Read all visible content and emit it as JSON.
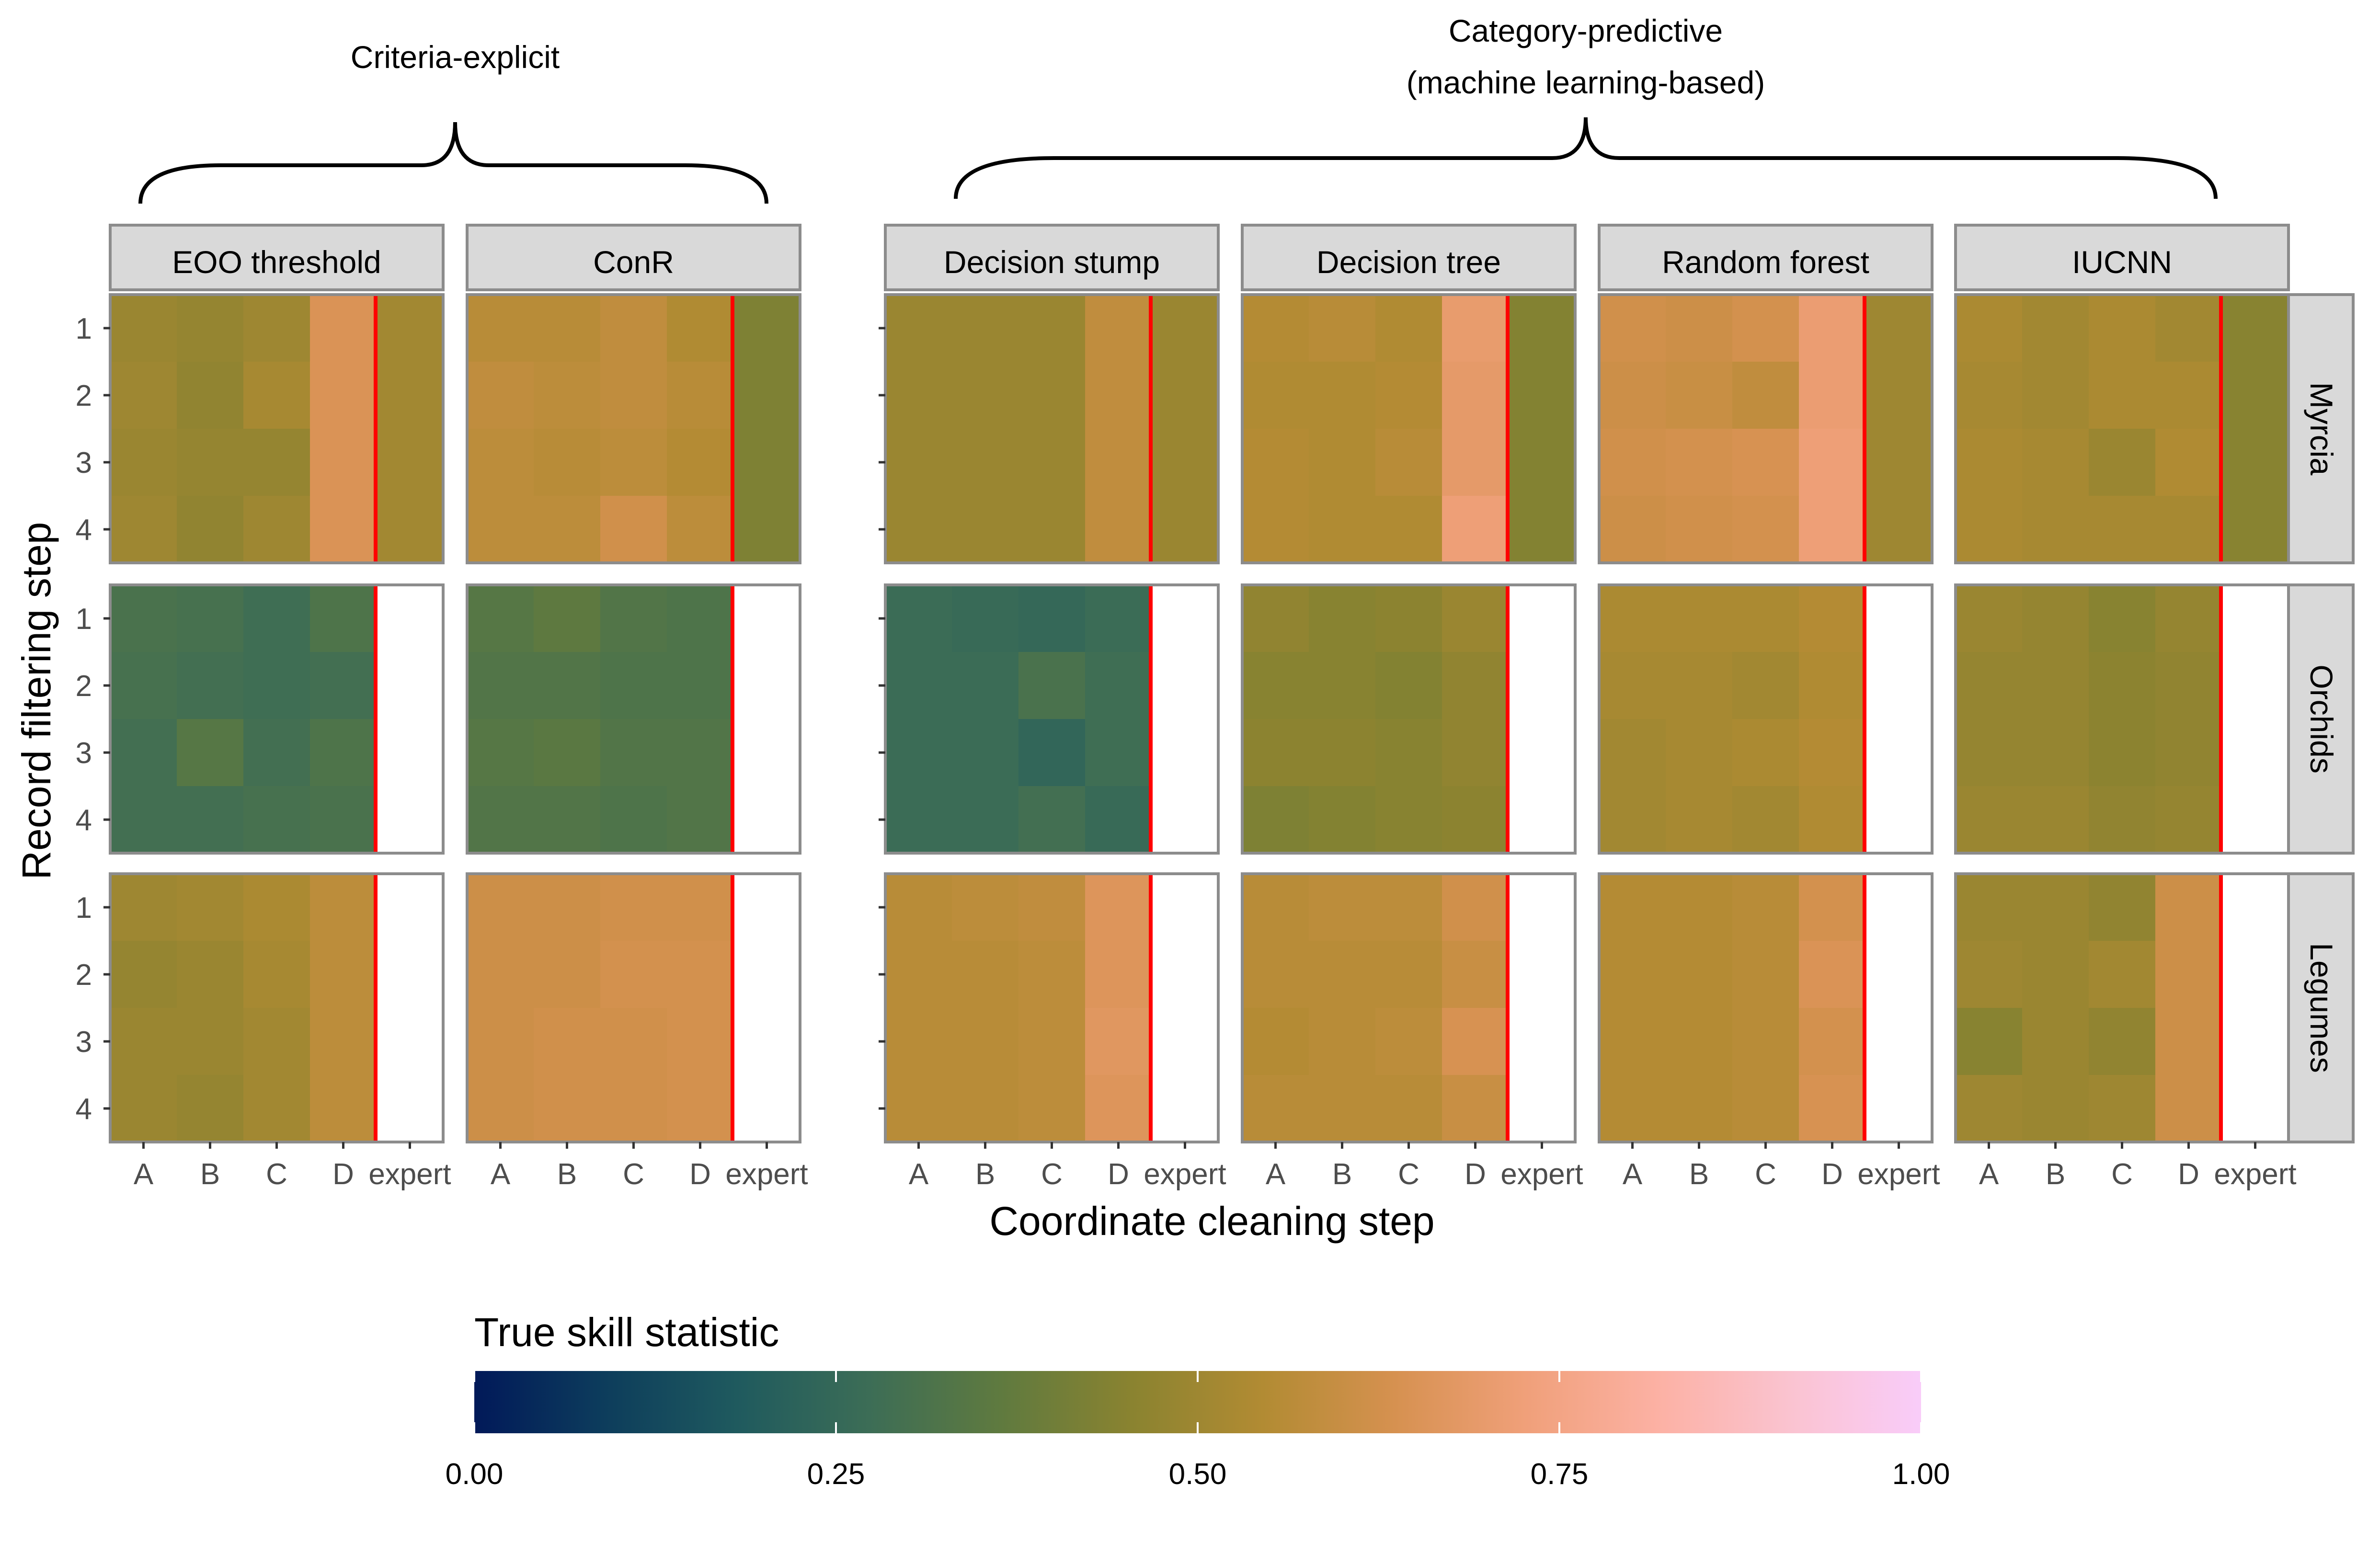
{
  "chart_data": {
    "type": "heatmap",
    "xlabel": "Coordinate cleaning step",
    "ylabel": "Record filtering step",
    "x_categories": [
      "A",
      "B",
      "C",
      "D",
      "expert"
    ],
    "y_categories": [
      "1",
      "2",
      "3",
      "4"
    ],
    "groups": [
      {
        "label": "Criteria-explicit",
        "methods": [
          "EOO threshold",
          "ConR"
        ]
      },
      {
        "label_line1": "Category-predictive",
        "label_line2": "(machine learning-based)",
        "methods": [
          "Decision stump",
          "Decision tree",
          "Random forest",
          "IUCNN"
        ]
      }
    ],
    "methods": [
      "EOO threshold",
      "ConR",
      "Decision stump",
      "Decision tree",
      "Random forest",
      "IUCNN"
    ],
    "rows": [
      "Myrcia",
      "Orchids",
      "Legumes"
    ],
    "legend": {
      "title": "True skill statistic",
      "ticks": [
        "0.00",
        "0.25",
        "0.50",
        "0.75",
        "1.00"
      ],
      "range": [
        0,
        1
      ],
      "colors": [
        "#011959",
        "#0d3d5c",
        "#1f5a5e",
        "#3c6d56",
        "#5f7a3f",
        "#8a8330",
        "#b28b33",
        "#d69150",
        "#f0a07a",
        "#fcb1a4",
        "#fac3d0",
        "#f9ccf9"
      ]
    },
    "divider_color": "#ff0000",
    "values": {
      "Myrcia": {
        "EOO threshold": [
          [
            0.49,
            0.48,
            0.5,
            0.65,
            0.51
          ],
          [
            0.5,
            0.47,
            0.52,
            0.65,
            0.51
          ],
          [
            0.49,
            0.48,
            0.48,
            0.65,
            0.51
          ],
          [
            0.5,
            0.47,
            0.5,
            0.65,
            0.51
          ]
        ],
        "ConR": [
          [
            0.56,
            0.56,
            0.58,
            0.54,
            0.43
          ],
          [
            0.58,
            0.57,
            0.58,
            0.56,
            0.43
          ],
          [
            0.57,
            0.56,
            0.57,
            0.55,
            0.43
          ],
          [
            0.57,
            0.57,
            0.62,
            0.57,
            0.43
          ]
        ],
        "Decision stump": [
          [
            0.49,
            0.49,
            0.49,
            0.58,
            0.49
          ],
          [
            0.49,
            0.49,
            0.49,
            0.58,
            0.49
          ],
          [
            0.49,
            0.49,
            0.49,
            0.58,
            0.49
          ],
          [
            0.49,
            0.49,
            0.49,
            0.58,
            0.49
          ]
        ],
        "Decision tree": [
          [
            0.55,
            0.56,
            0.54,
            0.7,
            0.44
          ],
          [
            0.54,
            0.54,
            0.55,
            0.69,
            0.44
          ],
          [
            0.55,
            0.54,
            0.56,
            0.69,
            0.44
          ],
          [
            0.55,
            0.54,
            0.54,
            0.72,
            0.44
          ]
        ],
        "Random forest": [
          [
            0.62,
            0.61,
            0.63,
            0.71,
            0.5
          ],
          [
            0.61,
            0.6,
            0.58,
            0.71,
            0.5
          ],
          [
            0.62,
            0.63,
            0.64,
            0.72,
            0.5
          ],
          [
            0.61,
            0.62,
            0.63,
            0.72,
            0.5
          ]
        ],
        "IUCNN": [
          [
            0.53,
            0.51,
            0.53,
            0.51,
            0.45
          ],
          [
            0.52,
            0.51,
            0.53,
            0.53,
            0.45
          ],
          [
            0.53,
            0.52,
            0.49,
            0.54,
            0.45
          ],
          [
            0.53,
            0.52,
            0.52,
            0.52,
            0.45
          ]
        ]
      },
      "Orchids": {
        "EOO threshold": [
          [
            0.31,
            0.3,
            0.28,
            0.32,
            null
          ],
          [
            0.3,
            0.29,
            0.28,
            0.29,
            null
          ],
          [
            0.29,
            0.34,
            0.29,
            0.32,
            null
          ],
          [
            0.29,
            0.29,
            0.3,
            0.31,
            null
          ]
        ],
        "ConR": [
          [
            0.34,
            0.36,
            0.33,
            0.32,
            null
          ],
          [
            0.33,
            0.33,
            0.32,
            0.32,
            null
          ],
          [
            0.34,
            0.35,
            0.33,
            0.33,
            null
          ],
          [
            0.33,
            0.33,
            0.32,
            0.33,
            null
          ]
        ],
        "Decision stump": [
          [
            0.27,
            0.26,
            0.25,
            0.27,
            null
          ],
          [
            0.27,
            0.27,
            0.31,
            0.28,
            null
          ],
          [
            0.27,
            0.27,
            0.24,
            0.28,
            null
          ],
          [
            0.27,
            0.27,
            0.29,
            0.26,
            null
          ]
        ],
        "Decision tree": [
          [
            0.47,
            0.45,
            0.46,
            0.49,
            null
          ],
          [
            0.45,
            0.45,
            0.44,
            0.47,
            null
          ],
          [
            0.46,
            0.46,
            0.45,
            0.47,
            null
          ],
          [
            0.43,
            0.44,
            0.45,
            0.46,
            null
          ]
        ],
        "Random forest": [
          [
            0.53,
            0.53,
            0.53,
            0.55,
            null
          ],
          [
            0.52,
            0.52,
            0.51,
            0.54,
            null
          ],
          [
            0.51,
            0.52,
            0.53,
            0.55,
            null
          ],
          [
            0.51,
            0.52,
            0.51,
            0.54,
            null
          ]
        ],
        "IUCNN": [
          [
            0.49,
            0.48,
            0.45,
            0.48,
            null
          ],
          [
            0.48,
            0.48,
            0.46,
            0.47,
            null
          ],
          [
            0.48,
            0.48,
            0.46,
            0.47,
            null
          ],
          [
            0.49,
            0.49,
            0.47,
            0.48,
            null
          ]
        ]
      },
      "Legumes": {
        "EOO threshold": [
          [
            0.5,
            0.51,
            0.53,
            0.57,
            null
          ],
          [
            0.48,
            0.49,
            0.52,
            0.57,
            null
          ],
          [
            0.49,
            0.49,
            0.51,
            0.57,
            null
          ],
          [
            0.49,
            0.48,
            0.51,
            0.57,
            null
          ]
        ],
        "ConR": [
          [
            0.61,
            0.61,
            0.62,
            0.62,
            null
          ],
          [
            0.61,
            0.61,
            0.63,
            0.63,
            null
          ],
          [
            0.61,
            0.62,
            0.62,
            0.63,
            null
          ],
          [
            0.61,
            0.62,
            0.62,
            0.63,
            null
          ]
        ],
        "Decision stump": [
          [
            0.56,
            0.57,
            0.58,
            0.66,
            null
          ],
          [
            0.56,
            0.56,
            0.57,
            0.66,
            null
          ],
          [
            0.56,
            0.56,
            0.57,
            0.67,
            null
          ],
          [
            0.56,
            0.56,
            0.57,
            0.66,
            null
          ]
        ],
        "Decision tree": [
          [
            0.56,
            0.57,
            0.57,
            0.62,
            null
          ],
          [
            0.56,
            0.56,
            0.56,
            0.6,
            null
          ],
          [
            0.55,
            0.56,
            0.57,
            0.64,
            null
          ],
          [
            0.56,
            0.56,
            0.56,
            0.6,
            null
          ]
        ],
        "Random forest": [
          [
            0.55,
            0.55,
            0.56,
            0.63,
            null
          ],
          [
            0.55,
            0.55,
            0.56,
            0.65,
            null
          ],
          [
            0.55,
            0.55,
            0.56,
            0.63,
            null
          ],
          [
            0.55,
            0.55,
            0.56,
            0.64,
            null
          ]
        ],
        "IUCNN": [
          [
            0.49,
            0.49,
            0.47,
            0.61,
            null
          ],
          [
            0.5,
            0.49,
            0.51,
            0.61,
            null
          ],
          [
            0.45,
            0.49,
            0.47,
            0.61,
            null
          ],
          [
            0.5,
            0.49,
            0.5,
            0.61,
            null
          ]
        ]
      }
    }
  }
}
